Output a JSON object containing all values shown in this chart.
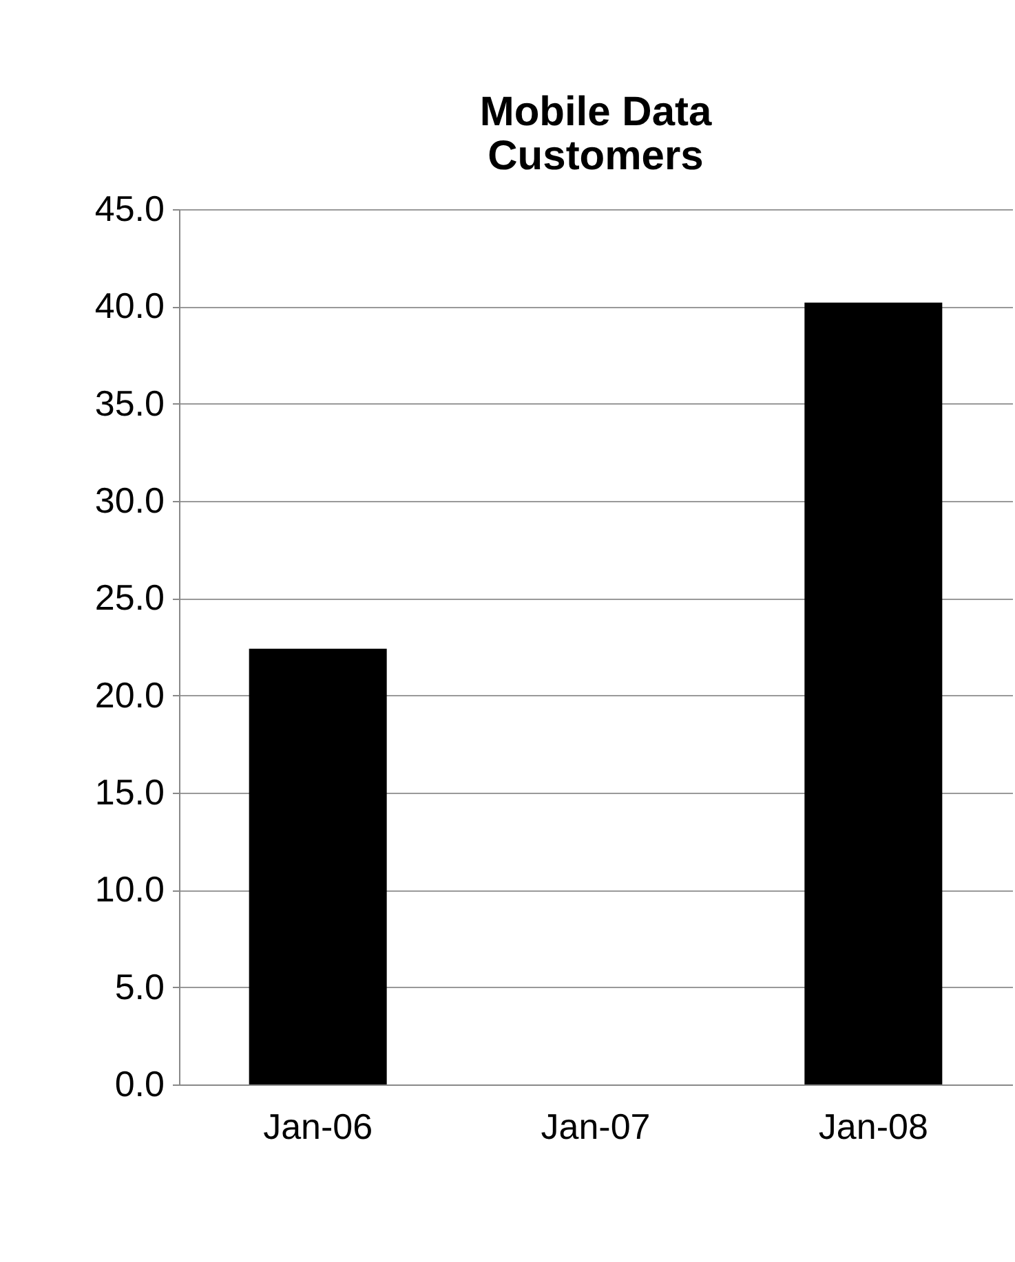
{
  "chart_data": {
    "type": "bar",
    "title": "Mobile Data\nCustomers",
    "categories": [
      "Jan-06",
      "Jan-07",
      "Jan-08"
    ],
    "values": [
      22.4,
      null,
      40.2
    ],
    "color": "#000000",
    "ylim": [
      0,
      45
    ],
    "yticks": [
      {
        "value": 0,
        "label": "0.0"
      },
      {
        "value": 5,
        "label": "5.0"
      },
      {
        "value": 10,
        "label": "10.0"
      },
      {
        "value": 15,
        "label": "15.0"
      },
      {
        "value": 20,
        "label": "20.0"
      },
      {
        "value": 25,
        "label": "25.0"
      },
      {
        "value": 30,
        "label": "30.0"
      },
      {
        "value": 35,
        "label": "35.0"
      },
      {
        "value": 40,
        "label": "40.0"
      },
      {
        "value": 45,
        "label": "45.0"
      }
    ],
    "grid": "y"
  }
}
